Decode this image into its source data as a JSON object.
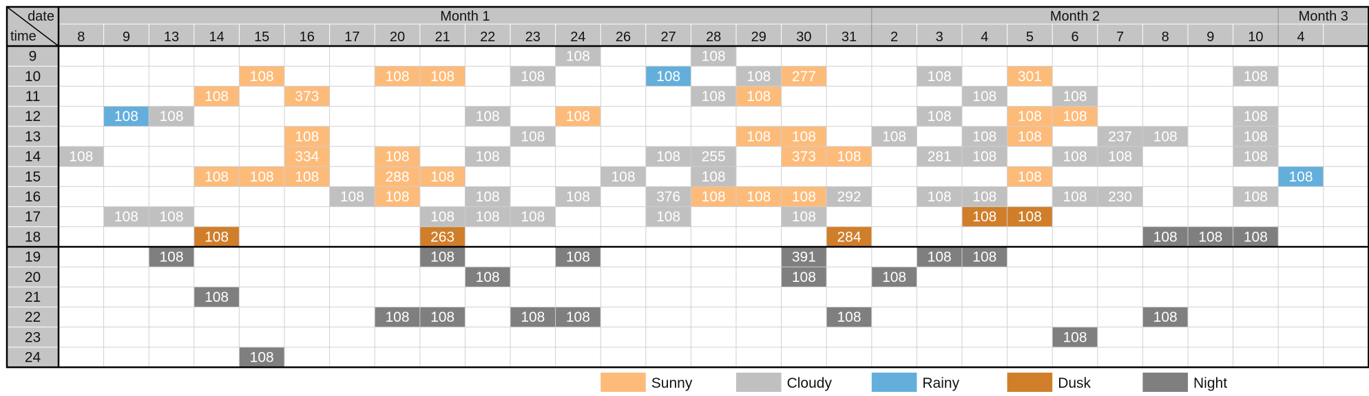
{
  "chart_data": {
    "type": "heatmap",
    "corner_labels": {
      "top": "date",
      "bottom": "time"
    },
    "months": [
      {
        "label": "Month 1",
        "dates": [
          "8",
          "9",
          "13",
          "14",
          "15",
          "16",
          "17",
          "20",
          "21",
          "22",
          "23",
          "24",
          "26",
          "27",
          "28",
          "29",
          "30",
          "31"
        ]
      },
      {
        "label": "Month 2",
        "dates": [
          "2",
          "3",
          "4",
          "5",
          "6",
          "7",
          "8",
          "9",
          "10"
        ]
      },
      {
        "label": "Month 3",
        "dates": [
          "4",
          ""
        ]
      }
    ],
    "times": [
      "9",
      "10",
      "11",
      "12",
      "13",
      "14",
      "15",
      "16",
      "17",
      "18",
      "19",
      "20",
      "21",
      "22",
      "23",
      "24"
    ],
    "legend": [
      {
        "key": "S",
        "label": "Sunny",
        "color": "#FDBB7A"
      },
      {
        "key": "C",
        "label": "Cloudy",
        "color": "#C0C0C0"
      },
      {
        "key": "R",
        "label": "Rainy",
        "color": "#64AEDC"
      },
      {
        "key": "D",
        "label": "Dusk",
        "color": "#D07E2A"
      },
      {
        "key": "N",
        "label": "Night",
        "color": "#7F7F7F"
      }
    ],
    "header_bg": "#C4C4C4",
    "cells": [
      {
        "time": "9",
        "col": 11,
        "value": "108",
        "type": "C"
      },
      {
        "time": "9",
        "col": 14,
        "value": "108",
        "type": "C"
      },
      {
        "time": "10",
        "col": 4,
        "value": "108",
        "type": "S"
      },
      {
        "time": "10",
        "col": 7,
        "value": "108",
        "type": "S"
      },
      {
        "time": "10",
        "col": 8,
        "value": "108",
        "type": "S"
      },
      {
        "time": "10",
        "col": 10,
        "value": "108",
        "type": "C"
      },
      {
        "time": "10",
        "col": 13,
        "value": "108",
        "type": "R"
      },
      {
        "time": "10",
        "col": 15,
        "value": "108",
        "type": "C"
      },
      {
        "time": "10",
        "col": 16,
        "value": "277",
        "type": "S"
      },
      {
        "time": "10",
        "col": 19,
        "value": "108",
        "type": "C"
      },
      {
        "time": "10",
        "col": 21,
        "value": "301",
        "type": "S"
      },
      {
        "time": "10",
        "col": 26,
        "value": "108",
        "type": "C"
      },
      {
        "time": "11",
        "col": 3,
        "value": "108",
        "type": "S"
      },
      {
        "time": "11",
        "col": 5,
        "value": "373",
        "type": "S"
      },
      {
        "time": "11",
        "col": 14,
        "value": "108",
        "type": "C"
      },
      {
        "time": "11",
        "col": 15,
        "value": "108",
        "type": "S"
      },
      {
        "time": "11",
        "col": 20,
        "value": "108",
        "type": "C"
      },
      {
        "time": "11",
        "col": 22,
        "value": "108",
        "type": "C"
      },
      {
        "time": "12",
        "col": 1,
        "value": "108",
        "type": "R"
      },
      {
        "time": "12",
        "col": 2,
        "value": "108",
        "type": "C"
      },
      {
        "time": "12",
        "col": 9,
        "value": "108",
        "type": "C"
      },
      {
        "time": "12",
        "col": 11,
        "value": "108",
        "type": "S"
      },
      {
        "time": "12",
        "col": 19,
        "value": "108",
        "type": "C"
      },
      {
        "time": "12",
        "col": 21,
        "value": "108",
        "type": "S"
      },
      {
        "time": "12",
        "col": 22,
        "value": "108",
        "type": "S"
      },
      {
        "time": "12",
        "col": 26,
        "value": "108",
        "type": "C"
      },
      {
        "time": "13",
        "col": 5,
        "value": "108",
        "type": "S"
      },
      {
        "time": "13",
        "col": 10,
        "value": "108",
        "type": "C"
      },
      {
        "time": "13",
        "col": 15,
        "value": "108",
        "type": "S"
      },
      {
        "time": "13",
        "col": 16,
        "value": "108",
        "type": "S"
      },
      {
        "time": "13",
        "col": 18,
        "value": "108",
        "type": "C"
      },
      {
        "time": "13",
        "col": 20,
        "value": "108",
        "type": "C"
      },
      {
        "time": "13",
        "col": 21,
        "value": "108",
        "type": "S"
      },
      {
        "time": "13",
        "col": 23,
        "value": "237",
        "type": "C"
      },
      {
        "time": "13",
        "col": 24,
        "value": "108",
        "type": "C"
      },
      {
        "time": "13",
        "col": 26,
        "value": "108",
        "type": "C"
      },
      {
        "time": "14",
        "col": 0,
        "value": "108",
        "type": "C"
      },
      {
        "time": "14",
        "col": 5,
        "value": "334",
        "type": "S"
      },
      {
        "time": "14",
        "col": 7,
        "value": "108",
        "type": "S"
      },
      {
        "time": "14",
        "col": 9,
        "value": "108",
        "type": "C"
      },
      {
        "time": "14",
        "col": 13,
        "value": "108",
        "type": "C"
      },
      {
        "time": "14",
        "col": 14,
        "value": "255",
        "type": "C"
      },
      {
        "time": "14",
        "col": 16,
        "value": "373",
        "type": "S"
      },
      {
        "time": "14",
        "col": 17,
        "value": "108",
        "type": "S"
      },
      {
        "time": "14",
        "col": 19,
        "value": "281",
        "type": "C"
      },
      {
        "time": "14",
        "col": 20,
        "value": "108",
        "type": "C"
      },
      {
        "time": "14",
        "col": 22,
        "value": "108",
        "type": "C"
      },
      {
        "time": "14",
        "col": 23,
        "value": "108",
        "type": "C"
      },
      {
        "time": "14",
        "col": 26,
        "value": "108",
        "type": "C"
      },
      {
        "time": "15",
        "col": 3,
        "value": "108",
        "type": "S"
      },
      {
        "time": "15",
        "col": 4,
        "value": "108",
        "type": "S"
      },
      {
        "time": "15",
        "col": 5,
        "value": "108",
        "type": "S"
      },
      {
        "time": "15",
        "col": 7,
        "value": "288",
        "type": "S"
      },
      {
        "time": "15",
        "col": 8,
        "value": "108",
        "type": "S"
      },
      {
        "time": "15",
        "col": 12,
        "value": "108",
        "type": "C"
      },
      {
        "time": "15",
        "col": 14,
        "value": "108",
        "type": "C"
      },
      {
        "time": "15",
        "col": 21,
        "value": "108",
        "type": "S"
      },
      {
        "time": "15",
        "col": 27,
        "value": "108",
        "type": "R"
      },
      {
        "time": "16",
        "col": 6,
        "value": "108",
        "type": "C"
      },
      {
        "time": "16",
        "col": 7,
        "value": "108",
        "type": "S"
      },
      {
        "time": "16",
        "col": 9,
        "value": "108",
        "type": "C"
      },
      {
        "time": "16",
        "col": 11,
        "value": "108",
        "type": "C"
      },
      {
        "time": "16",
        "col": 13,
        "value": "376",
        "type": "C"
      },
      {
        "time": "16",
        "col": 14,
        "value": "108",
        "type": "S"
      },
      {
        "time": "16",
        "col": 15,
        "value": "108",
        "type": "S"
      },
      {
        "time": "16",
        "col": 16,
        "value": "108",
        "type": "S"
      },
      {
        "time": "16",
        "col": 17,
        "value": "292",
        "type": "C"
      },
      {
        "time": "16",
        "col": 19,
        "value": "108",
        "type": "C"
      },
      {
        "time": "16",
        "col": 20,
        "value": "108",
        "type": "C"
      },
      {
        "time": "16",
        "col": 22,
        "value": "108",
        "type": "C"
      },
      {
        "time": "16",
        "col": 23,
        "value": "230",
        "type": "C"
      },
      {
        "time": "16",
        "col": 26,
        "value": "108",
        "type": "C"
      },
      {
        "time": "17",
        "col": 1,
        "value": "108",
        "type": "C"
      },
      {
        "time": "17",
        "col": 2,
        "value": "108",
        "type": "C"
      },
      {
        "time": "17",
        "col": 8,
        "value": "108",
        "type": "C"
      },
      {
        "time": "17",
        "col": 9,
        "value": "108",
        "type": "C"
      },
      {
        "time": "17",
        "col": 10,
        "value": "108",
        "type": "C"
      },
      {
        "time": "17",
        "col": 13,
        "value": "108",
        "type": "C"
      },
      {
        "time": "17",
        "col": 16,
        "value": "108",
        "type": "C"
      },
      {
        "time": "17",
        "col": 20,
        "value": "108",
        "type": "D"
      },
      {
        "time": "17",
        "col": 21,
        "value": "108",
        "type": "D"
      },
      {
        "time": "18",
        "col": 3,
        "value": "108",
        "type": "D"
      },
      {
        "time": "18",
        "col": 8,
        "value": "263",
        "type": "D"
      },
      {
        "time": "18",
        "col": 17,
        "value": "284",
        "type": "D"
      },
      {
        "time": "18",
        "col": 24,
        "value": "108",
        "type": "N"
      },
      {
        "time": "18",
        "col": 25,
        "value": "108",
        "type": "N"
      },
      {
        "time": "18",
        "col": 26,
        "value": "108",
        "type": "N"
      },
      {
        "time": "19",
        "col": 2,
        "value": "108",
        "type": "N"
      },
      {
        "time": "19",
        "col": 8,
        "value": "108",
        "type": "N"
      },
      {
        "time": "19",
        "col": 11,
        "value": "108",
        "type": "N"
      },
      {
        "time": "19",
        "col": 16,
        "value": "391",
        "type": "N"
      },
      {
        "time": "19",
        "col": 19,
        "value": "108",
        "type": "N"
      },
      {
        "time": "19",
        "col": 20,
        "value": "108",
        "type": "N"
      },
      {
        "time": "20",
        "col": 9,
        "value": "108",
        "type": "N"
      },
      {
        "time": "20",
        "col": 16,
        "value": "108",
        "type": "N"
      },
      {
        "time": "20",
        "col": 18,
        "value": "108",
        "type": "N"
      },
      {
        "time": "21",
        "col": 3,
        "value": "108",
        "type": "N"
      },
      {
        "time": "22",
        "col": 7,
        "value": "108",
        "type": "N"
      },
      {
        "time": "22",
        "col": 8,
        "value": "108",
        "type": "N"
      },
      {
        "time": "22",
        "col": 10,
        "value": "108",
        "type": "N"
      },
      {
        "time": "22",
        "col": 11,
        "value": "108",
        "type": "N"
      },
      {
        "time": "22",
        "col": 17,
        "value": "108",
        "type": "N"
      },
      {
        "time": "22",
        "col": 24,
        "value": "108",
        "type": "N"
      },
      {
        "time": "23",
        "col": 22,
        "value": "108",
        "type": "N"
      },
      {
        "time": "24",
        "col": 4,
        "value": "108",
        "type": "N"
      }
    ]
  }
}
